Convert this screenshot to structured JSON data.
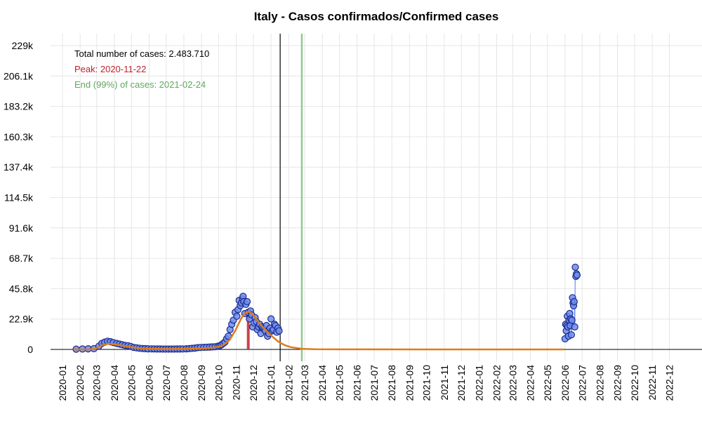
{
  "chart_data": {
    "type": "scatter",
    "title": "Italy - Casos confirmados/Confirmed cases",
    "xlabel": "",
    "ylabel": "",
    "grid": true,
    "colors": {
      "points_fill": "#6f8ef0",
      "points_stroke": "#1c2a8a",
      "fit": "#e07b1a",
      "peak": "#c0202e",
      "end": "#8fc98f",
      "today": "#000000",
      "text_total": "#000000",
      "text_peak": "#c0202e",
      "text_end": "#5fa85f"
    },
    "x_tick_labels": [
      "2020-01",
      "2020-02",
      "2020-03",
      "2020-04",
      "2020-05",
      "2020-06",
      "2020-07",
      "2020-08",
      "2020-09",
      "2020-10",
      "2020-11",
      "2020-12",
      "2021-01",
      "2021-02",
      "2021-03",
      "2021-04",
      "2021-05",
      "2021-06",
      "2021-07",
      "2021-08",
      "2021-09",
      "2021-10",
      "2021-11",
      "2021-12",
      "2022-01",
      "2022-02",
      "2022-03",
      "2022-04",
      "2022-05",
      "2022-06",
      "2022-07",
      "2022-08",
      "2022-09",
      "2022-10",
      "2022-11",
      "2022-12"
    ],
    "y_tick_labels": [
      "0",
      "22.9k",
      "45.8k",
      "68.7k",
      "91.6k",
      "114.5k",
      "137.4k",
      "160.3k",
      "183.2k",
      "206.1k",
      "229k"
    ],
    "ylim": [
      0,
      229000
    ],
    "xlim": [
      "2019-12-11",
      "2023-01-15"
    ],
    "annotations": {
      "total": "Total number of cases: 2.483.710",
      "peak": "Peak: 2020-11-22",
      "end": "End (99%) of cases: 2021-02-24"
    },
    "peak": {
      "date": "2020-11-22",
      "value": 28500
    },
    "end_date": "2021-02-24",
    "today_line_date": "2021-01-17",
    "series": [
      {
        "type": "scatter",
        "points": [
          [
            "2020-01-25",
            200
          ],
          [
            "2020-02-05",
            300
          ],
          [
            "2020-02-15",
            500
          ],
          [
            "2020-02-25",
            600
          ],
          [
            "2020-03-05",
            2500
          ],
          [
            "2020-03-10",
            4500
          ],
          [
            "2020-03-15",
            5500
          ],
          [
            "2020-03-20",
            6200
          ],
          [
            "2020-03-25",
            5800
          ],
          [
            "2020-03-30",
            5200
          ],
          [
            "2020-04-05",
            4500
          ],
          [
            "2020-04-10",
            4000
          ],
          [
            "2020-04-15",
            3500
          ],
          [
            "2020-04-20",
            3000
          ],
          [
            "2020-04-25",
            2800
          ],
          [
            "2020-04-30",
            2200
          ],
          [
            "2020-05-05",
            1500
          ],
          [
            "2020-05-10",
            1200
          ],
          [
            "2020-05-15",
            900
          ],
          [
            "2020-05-20",
            700
          ],
          [
            "2020-05-25",
            600
          ],
          [
            "2020-05-30",
            500
          ],
          [
            "2020-06-05",
            400
          ],
          [
            "2020-06-10",
            350
          ],
          [
            "2020-06-15",
            300
          ],
          [
            "2020-06-20",
            300
          ],
          [
            "2020-06-25",
            250
          ],
          [
            "2020-06-30",
            250
          ],
          [
            "2020-07-05",
            250
          ],
          [
            "2020-07-10",
            250
          ],
          [
            "2020-07-15",
            250
          ],
          [
            "2020-07-20",
            300
          ],
          [
            "2020-07-25",
            300
          ],
          [
            "2020-07-30",
            350
          ],
          [
            "2020-08-05",
            500
          ],
          [
            "2020-08-10",
            600
          ],
          [
            "2020-08-15",
            800
          ],
          [
            "2020-08-20",
            1000
          ],
          [
            "2020-08-25",
            1300
          ],
          [
            "2020-08-30",
            1500
          ],
          [
            "2020-09-05",
            1600
          ],
          [
            "2020-09-10",
            1700
          ],
          [
            "2020-09-15",
            1800
          ],
          [
            "2020-09-20",
            1900
          ],
          [
            "2020-09-25",
            2000
          ],
          [
            "2020-09-30",
            2500
          ],
          [
            "2020-10-03",
            2800
          ],
          [
            "2020-10-06",
            3500
          ],
          [
            "2020-10-09",
            4500
          ],
          [
            "2020-10-12",
            5500
          ],
          [
            "2020-10-15",
            8000
          ],
          [
            "2020-10-18",
            10000
          ],
          [
            "2020-10-21",
            15000
          ],
          [
            "2020-10-24",
            19000
          ],
          [
            "2020-10-27",
            22000
          ],
          [
            "2020-10-30",
            28000
          ],
          [
            "2020-11-02",
            25000
          ],
          [
            "2020-11-04",
            30000
          ],
          [
            "2020-11-06",
            37000
          ],
          [
            "2020-11-08",
            33000
          ],
          [
            "2020-11-10",
            35000
          ],
          [
            "2020-11-12",
            38000
          ],
          [
            "2020-11-13",
            40000
          ],
          [
            "2020-11-14",
            36000
          ],
          [
            "2020-11-16",
            27000
          ],
          [
            "2020-11-18",
            34000
          ],
          [
            "2020-11-20",
            36000
          ],
          [
            "2020-11-22",
            28000
          ],
          [
            "2020-11-24",
            23000
          ],
          [
            "2020-11-26",
            29000
          ],
          [
            "2020-11-28",
            26000
          ],
          [
            "2020-11-30",
            17000
          ],
          [
            "2020-12-02",
            20000
          ],
          [
            "2020-12-04",
            24000
          ],
          [
            "2020-12-06",
            21000
          ],
          [
            "2020-12-08",
            15000
          ],
          [
            "2020-12-10",
            17000
          ],
          [
            "2020-12-12",
            19000
          ],
          [
            "2020-12-14",
            12000
          ],
          [
            "2020-12-16",
            17000
          ],
          [
            "2020-12-18",
            16000
          ],
          [
            "2020-12-20",
            15000
          ],
          [
            "2020-12-22",
            14000
          ],
          [
            "2020-12-24",
            18000
          ],
          [
            "2020-12-26",
            10000
          ],
          [
            "2020-12-28",
            12000
          ],
          [
            "2020-12-30",
            16000
          ],
          [
            "2021-01-01",
            23000
          ],
          [
            "2021-01-03",
            14000
          ],
          [
            "2021-01-05",
            15000
          ],
          [
            "2021-01-07",
            19000
          ],
          [
            "2021-01-09",
            18000
          ],
          [
            "2021-01-11",
            13000
          ],
          [
            "2021-01-13",
            16000
          ],
          [
            "2021-01-15",
            14000
          ]
        ]
      },
      {
        "type": "scatter-connected",
        "points": [
          [
            "2022-06-01",
            8000
          ],
          [
            "2022-06-02",
            19000
          ],
          [
            "2022-06-03",
            14000
          ],
          [
            "2022-06-04",
            18000
          ],
          [
            "2022-06-05",
            25000
          ],
          [
            "2022-06-06",
            17000
          ],
          [
            "2022-06-07",
            10000
          ],
          [
            "2022-06-08",
            22000
          ],
          [
            "2022-06-09",
            27000
          ],
          [
            "2022-06-10",
            18000
          ],
          [
            "2022-06-11",
            23000
          ],
          [
            "2022-06-12",
            11000
          ],
          [
            "2022-06-13",
            22000
          ],
          [
            "2022-06-14",
            39000
          ],
          [
            "2022-06-15",
            35000
          ],
          [
            "2022-06-16",
            33000
          ],
          [
            "2022-06-17",
            36000
          ],
          [
            "2022-06-18",
            17000
          ],
          [
            "2022-06-19",
            62000
          ],
          [
            "2022-06-20",
            55000
          ],
          [
            "2022-06-21",
            57000
          ],
          [
            "2022-06-22",
            56000
          ]
        ]
      },
      {
        "type": "fit-line",
        "points": [
          [
            "2020-01-20",
            0
          ],
          [
            "2020-02-20",
            0
          ],
          [
            "2020-03-01",
            1000
          ],
          [
            "2020-03-10",
            3000
          ],
          [
            "2020-03-20",
            4300
          ],
          [
            "2020-03-30",
            4000
          ],
          [
            "2020-04-10",
            3300
          ],
          [
            "2020-04-20",
            2500
          ],
          [
            "2020-05-01",
            1700
          ],
          [
            "2020-05-15",
            900
          ],
          [
            "2020-06-01",
            500
          ],
          [
            "2020-07-01",
            300
          ],
          [
            "2020-08-01",
            400
          ],
          [
            "2020-09-01",
            800
          ],
          [
            "2020-09-20",
            1300
          ],
          [
            "2020-10-01",
            2000
          ],
          [
            "2020-10-10",
            3500
          ],
          [
            "2020-10-20",
            7000
          ],
          [
            "2020-10-30",
            14000
          ],
          [
            "2020-11-08",
            22000
          ],
          [
            "2020-11-15",
            27000
          ],
          [
            "2020-11-22",
            28500
          ],
          [
            "2020-11-29",
            27000
          ],
          [
            "2020-12-06",
            23000
          ],
          [
            "2020-12-15",
            18000
          ],
          [
            "2020-12-25",
            13500
          ],
          [
            "2021-01-05",
            9000
          ],
          [
            "2021-01-15",
            5500
          ],
          [
            "2021-01-25",
            3200
          ],
          [
            "2021-02-05",
            1700
          ],
          [
            "2021-02-24",
            500
          ],
          [
            "2021-03-20",
            150
          ],
          [
            "2021-05-01",
            30
          ],
          [
            "2021-10-01",
            0
          ],
          [
            "2022-05-31",
            0
          ]
        ]
      }
    ]
  }
}
